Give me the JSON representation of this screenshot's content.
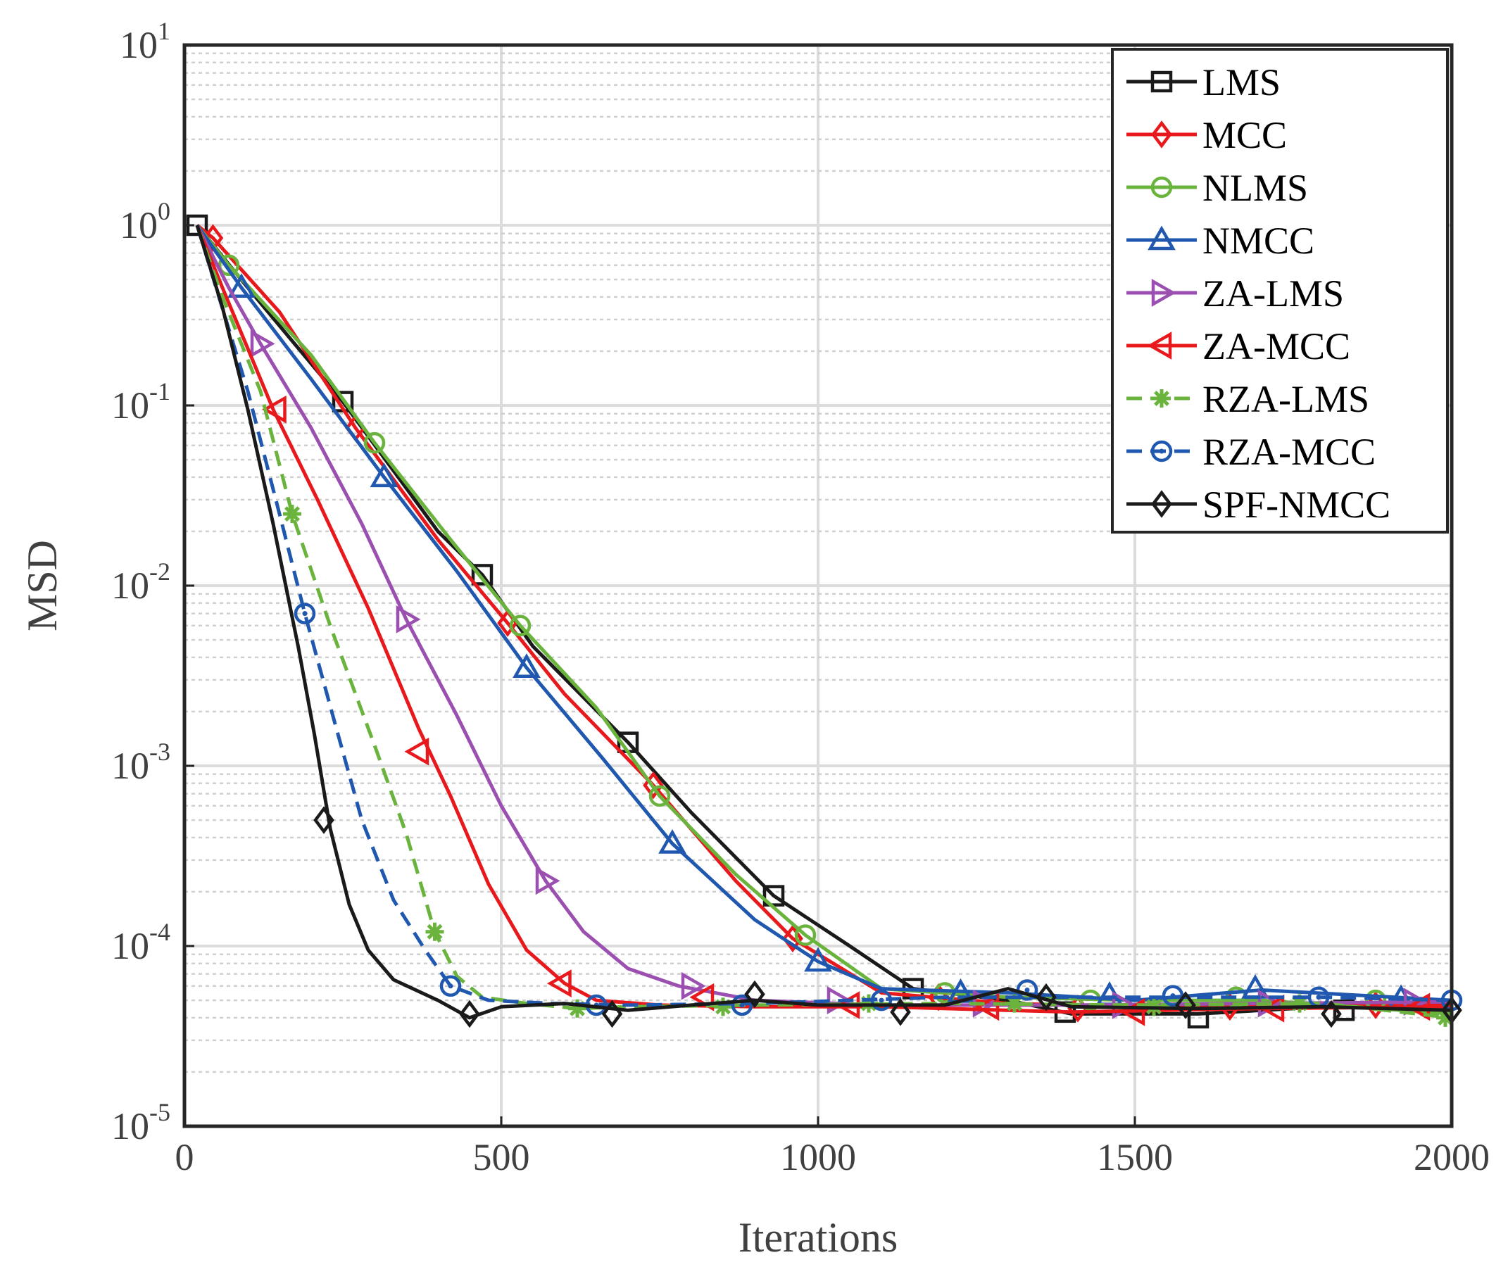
{
  "chart_data": {
    "type": "line",
    "title": "",
    "xlabel": "Iterations",
    "ylabel": "MSD",
    "xlim": [
      0,
      2000
    ],
    "ylim": [
      1e-05,
      10
    ],
    "yscale": "log",
    "grid": true,
    "legend_position": "top-right",
    "x_ticks": [
      {
        "value": 0,
        "label": "0"
      },
      {
        "value": 500,
        "label": "500"
      },
      {
        "value": 1000,
        "label": "1000"
      },
      {
        "value": 1500,
        "label": "1500"
      },
      {
        "value": 2000,
        "label": "2000"
      }
    ],
    "y_ticks": [
      {
        "value": 1e-05,
        "base": "10",
        "exp": "-5"
      },
      {
        "value": 0.0001,
        "base": "10",
        "exp": "-4"
      },
      {
        "value": 0.001,
        "base": "10",
        "exp": "-3"
      },
      {
        "value": 0.01,
        "base": "10",
        "exp": "-2"
      },
      {
        "value": 0.1,
        "base": "10",
        "exp": "-1"
      },
      {
        "value": 1,
        "base": "10",
        "exp": "0"
      },
      {
        "value": 10,
        "base": "10",
        "exp": "1"
      }
    ],
    "series": [
      {
        "name": "LMS",
        "color": "#1a1a1a",
        "dash": "solid",
        "marker": "square",
        "x": [
          20,
          100,
          250,
          400,
          470,
          550,
          700,
          800,
          930,
          1050,
          1150,
          1300,
          1400,
          1600,
          1800,
          2000
        ],
        "y": [
          1.0,
          0.45,
          0.105,
          0.02,
          0.0115,
          0.0046,
          0.00135,
          0.00055,
          0.00019,
          0.0001,
          5.8e-05,
          5e-05,
          4.2e-05,
          4.2e-05,
          4.6e-05,
          4.4e-05
        ],
        "markers_x": [
          20,
          250,
          470,
          700,
          930,
          1150,
          1390,
          1600,
          1830
        ],
        "markers_y": [
          1.0,
          0.105,
          0.0115,
          0.00135,
          0.00019,
          5.8e-05,
          4.3e-05,
          4e-05,
          4.4e-05
        ]
      },
      {
        "name": "MCC",
        "color": "#e8191c",
        "dash": "solid",
        "marker": "diamond",
        "x": [
          20,
          45,
          150,
          270,
          400,
          510,
          600,
          740,
          870,
          960,
          1100,
          1300,
          1500,
          1700,
          2000
        ],
        "y": [
          1.0,
          0.85,
          0.33,
          0.075,
          0.018,
          0.0062,
          0.0025,
          0.00078,
          0.00023,
          0.00011,
          5.5e-05,
          4.8e-05,
          4.6e-05,
          4.6e-05,
          4.7e-05
        ],
        "markers_x": [
          45,
          270,
          510,
          740,
          960,
          1190,
          1410,
          1650,
          1880
        ],
        "markers_y": [
          0.85,
          0.075,
          0.0062,
          0.00078,
          0.00011,
          5.2e-05,
          4.5e-05,
          4.6e-05,
          4.7e-05
        ]
      },
      {
        "name": "NLMS",
        "color": "#6ab43e",
        "dash": "solid",
        "marker": "circle",
        "x": [
          20,
          70,
          200,
          300,
          420,
          530,
          650,
          750,
          870,
          980,
          1100,
          1300,
          1500,
          1700,
          2000
        ],
        "y": [
          1.0,
          0.6,
          0.19,
          0.062,
          0.018,
          0.006,
          0.0021,
          0.00068,
          0.00025,
          0.000115,
          5.8e-05,
          5.2e-05,
          5e-05,
          5e-05,
          4.2e-05
        ],
        "markers_x": [
          70,
          300,
          530,
          750,
          980,
          1200,
          1430,
          1660,
          1880
        ],
        "markers_y": [
          0.6,
          0.062,
          0.006,
          0.00068,
          0.000115,
          5.5e-05,
          5e-05,
          5.2e-05,
          5e-05
        ]
      },
      {
        "name": "NMCC",
        "color": "#2058b0",
        "dash": "solid",
        "marker": "triangle-up",
        "x": [
          20,
          90,
          200,
          315,
          430,
          540,
          660,
          770,
          900,
          1000,
          1100,
          1300,
          1500,
          1700,
          2000
        ],
        "y": [
          1.0,
          0.45,
          0.14,
          0.04,
          0.012,
          0.0035,
          0.0011,
          0.00037,
          0.00014,
          8.2e-05,
          5.8e-05,
          5.5e-05,
          5e-05,
          5.7e-05,
          5e-05
        ],
        "markers_x": [
          90,
          315,
          540,
          770,
          1000,
          1225,
          1460,
          1690,
          1920
        ],
        "markers_y": [
          0.45,
          0.04,
          0.0035,
          0.00037,
          8.2e-05,
          5.5e-05,
          5.3e-05,
          5.8e-05,
          5.1e-05
        ]
      },
      {
        "name": "ZA-LMS",
        "color": "#9b4fb0",
        "dash": "solid",
        "marker": "triangle-right",
        "x": [
          20,
          70,
          120,
          200,
          280,
          350,
          430,
          500,
          570,
          630,
          700,
          780,
          900,
          1100,
          1400,
          1700,
          2000
        ],
        "y": [
          1.0,
          0.45,
          0.22,
          0.075,
          0.022,
          0.0065,
          0.0019,
          0.0006,
          0.00023,
          0.00012,
          7.5e-05,
          6e-05,
          5e-05,
          4.7e-05,
          4.7e-05,
          4.8e-05,
          4.9e-05
        ],
        "markers_x": [
          120,
          350,
          570,
          800,
          1030,
          1260,
          1480,
          1710,
          1940
        ],
        "markers_y": [
          0.22,
          0.0065,
          0.00023,
          6e-05,
          5e-05,
          4.8e-05,
          4.7e-05,
          4.8e-05,
          4.9e-05
        ]
      },
      {
        "name": "ZA-MCC",
        "color": "#e8191c",
        "dash": "solid",
        "marker": "triangle-left",
        "x": [
          20,
          60,
          140,
          210,
          290,
          370,
          420,
          480,
          540,
          600,
          650,
          750,
          900,
          1100,
          1400,
          1700,
          2000
        ],
        "y": [
          1.0,
          0.45,
          0.095,
          0.03,
          0.0075,
          0.0016,
          0.00068,
          0.00022,
          9.5e-05,
          6.2e-05,
          5e-05,
          4.7e-05,
          4.6e-05,
          4.6e-05,
          4.3e-05,
          4.5e-05,
          4.6e-05
        ],
        "markers_x": [
          145,
          370,
          595,
          820,
          1050,
          1270,
          1500,
          1720,
          1950
        ],
        "markers_y": [
          0.095,
          0.0012,
          6.2e-05,
          5.2e-05,
          4.7e-05,
          4.6e-05,
          4.3e-05,
          4.5e-05,
          4.6e-05
        ]
      },
      {
        "name": "RZA-LMS",
        "color": "#6ab43e",
        "dash": "dashed",
        "marker": "asterisk",
        "x": [
          20,
          60,
          120,
          170,
          230,
          300,
          350,
          395,
          430,
          470,
          540,
          620,
          700,
          900,
          1200,
          1500,
          1800,
          2000
        ],
        "y": [
          1.0,
          0.4,
          0.12,
          0.025,
          0.006,
          0.0013,
          0.00042,
          0.00012,
          6.8e-05,
          5.2e-05,
          4.8e-05,
          4.5e-05,
          4.6e-05,
          4.7e-05,
          4.8e-05,
          4.7e-05,
          4.8e-05,
          4e-05
        ],
        "markers_x": [
          170,
          395,
          620,
          850,
          1080,
          1310,
          1530,
          1760,
          1990
        ],
        "markers_y": [
          0.025,
          0.00012,
          4.5e-05,
          4.6e-05,
          4.8e-05,
          4.8e-05,
          4.6e-05,
          4.8e-05,
          4e-05
        ]
      },
      {
        "name": "RZA-MCC",
        "color": "#2058b0",
        "dash": "dashed",
        "marker": "circle-dot",
        "x": [
          20,
          50,
          100,
          150,
          190,
          240,
          280,
          330,
          380,
          420,
          480,
          580,
          700,
          900,
          1200,
          1500,
          1800,
          2000
        ],
        "y": [
          1.0,
          0.45,
          0.12,
          0.025,
          0.007,
          0.0016,
          0.0005,
          0.00018,
          9.5e-05,
          6e-05,
          5e-05,
          4.8e-05,
          4.7e-05,
          4.8e-05,
          5.2e-05,
          5.2e-05,
          5.2e-05,
          5e-05
        ],
        "markers_x": [
          190,
          420,
          650,
          880,
          1100,
          1330,
          1560,
          1790,
          2000
        ],
        "markers_y": [
          0.007,
          6e-05,
          4.7e-05,
          4.7e-05,
          5e-05,
          5.7e-05,
          5.3e-05,
          5.2e-05,
          5e-05
        ]
      },
      {
        "name": "SPF-NMCC",
        "color": "#1a1a1a",
        "dash": "solid",
        "marker": "diamond",
        "x": [
          20,
          60,
          100,
          140,
          180,
          205,
          230,
          260,
          290,
          330,
          400,
          450,
          500,
          600,
          700,
          800,
          900,
          1000,
          1200,
          1300,
          1400,
          1600,
          1800,
          2000
        ],
        "y": [
          1.0,
          0.35,
          0.095,
          0.022,
          0.0045,
          0.0015,
          0.00045,
          0.00017,
          9.5e-05,
          6.5e-05,
          5e-05,
          4e-05,
          4.6e-05,
          4.8e-05,
          4.4e-05,
          4.7e-05,
          5e-05,
          4.7e-05,
          4.7e-05,
          5.8e-05,
          4.6e-05,
          4.5e-05,
          4.6e-05,
          4.4e-05
        ],
        "markers_x": [
          220,
          450,
          675,
          900,
          1130,
          1360,
          1580,
          1810,
          2000
        ],
        "markers_y": [
          0.0005,
          4.2e-05,
          4.2e-05,
          5.4e-05,
          4.3e-05,
          5.2e-05,
          4.7e-05,
          4.2e-05,
          4.4e-05
        ]
      }
    ]
  }
}
